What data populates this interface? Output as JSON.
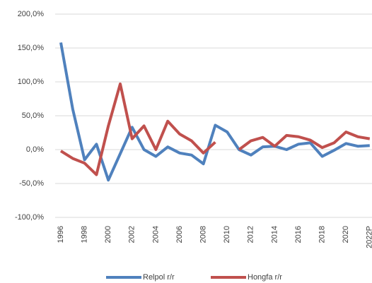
{
  "chart_data": {
    "type": "line",
    "categories": [
      "1996",
      null,
      "1998",
      null,
      "2000",
      null,
      "2002",
      null,
      "2004",
      null,
      "2006",
      null,
      "2008",
      null,
      "2010",
      null,
      "2012",
      null,
      "2014",
      null,
      "2016",
      null,
      "2018",
      null,
      "2020",
      null,
      "2022P"
    ],
    "series": [
      {
        "name": "Relpol r/r",
        "color": "#4f81bd",
        "values": [
          158,
          60,
          -15,
          8,
          -45,
          -6,
          33,
          0,
          -10,
          4,
          -5,
          -8,
          -21,
          36,
          26,
          0,
          -8,
          4,
          5,
          0,
          8,
          10,
          -10,
          -1,
          9,
          5,
          6
        ]
      },
      {
        "name": "Hongfa r/r",
        "color": "#c0504d",
        "values": [
          -2,
          -13,
          -20,
          -37,
          35,
          97,
          16,
          35,
          0,
          42,
          23,
          13,
          -5,
          11,
          null,
          0,
          13,
          18,
          5,
          21,
          19,
          14,
          3,
          10,
          26,
          19,
          16
        ]
      }
    ],
    "ylim": [
      -100,
      200
    ],
    "yticks": [
      {
        "value": -100,
        "label": "-100,0%"
      },
      {
        "value": -50,
        "label": "-50,0%"
      },
      {
        "value": 0,
        "label": "0,0%"
      },
      {
        "value": 50,
        "label": "50,0%"
      },
      {
        "value": 100,
        "label": "100,0%"
      },
      {
        "value": 150,
        "label": "150,0%"
      },
      {
        "value": 200,
        "label": "200,0%"
      }
    ],
    "grid": true,
    "legend": "bottom"
  }
}
